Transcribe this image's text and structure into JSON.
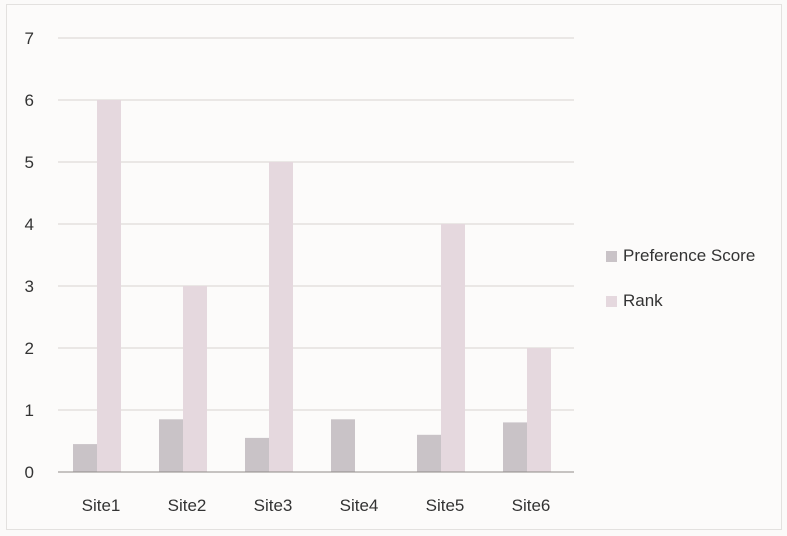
{
  "chart_data": {
    "type": "bar",
    "title": "",
    "xlabel": "",
    "ylabel": "",
    "categories": [
      "Site1",
      "Site2",
      "Site3",
      "Site4",
      "Site5",
      "Site6"
    ],
    "series": [
      {
        "name": "Preference Score",
        "values": [
          0.45,
          0.85,
          0.55,
          0.85,
          0.6,
          0.8
        ],
        "color": "#c9c3c7"
      },
      {
        "name": "Rank",
        "values": [
          6,
          3,
          5,
          0,
          4,
          2
        ],
        "color": "#e5d8de"
      }
    ],
    "ylim": [
      0,
      7
    ],
    "yticks": [
      "0",
      "1",
      "2",
      "3",
      "4",
      "5",
      "6",
      "7"
    ],
    "grid": true,
    "legend_position": "right"
  }
}
